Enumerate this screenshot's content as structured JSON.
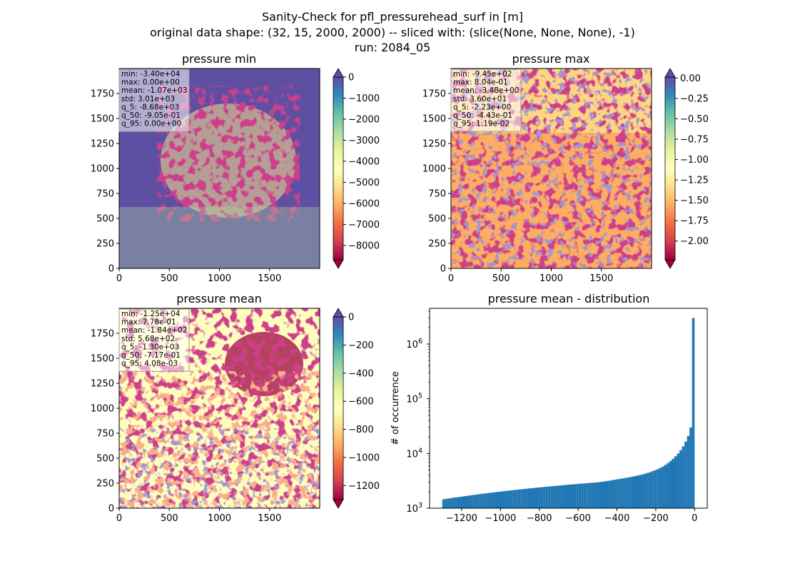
{
  "figure": {
    "title_lines": [
      "Sanity-Check for pfl_pressurehead_surf in [m]",
      "original data shape: (32, 15, 2000, 2000) -- sliced with: (slice(None, None, None), -1)",
      "run: 2084_05"
    ]
  },
  "chart_data": [
    {
      "type": "heatmap",
      "title": "pressure min",
      "xlabel": "",
      "ylabel": "",
      "xlim": [
        0,
        2000
      ],
      "ylim": [
        0,
        2000
      ],
      "xticks": [
        0,
        500,
        1000,
        1500
      ],
      "yticks": [
        0,
        250,
        500,
        750,
        1000,
        1250,
        1500,
        1750
      ],
      "colormap": "Spectral",
      "colorbar": {
        "ticks": [
          0,
          -1000,
          -2000,
          -3000,
          -4000,
          -5000,
          -6000,
          -7000,
          -8000
        ],
        "tick_labels": [
          "0",
          "−1000",
          "−2000",
          "−3000",
          "−4000",
          "−5000",
          "−6000",
          "−7000",
          "−8000"
        ],
        "vmin": -8680,
        "vmax": 0,
        "extend": "both"
      },
      "stats": [
        "min: -3.40e+04",
        "max: 0.00e+00",
        "mean: -1.07e+03",
        "std: 3.01e+03",
        "q_5: -8.68e+03",
        "q_50: -9.05e-01",
        "q_95: 0.00e+00"
      ],
      "dominant_color": "#5e4fa2"
    },
    {
      "type": "heatmap",
      "title": "pressure max",
      "xlabel": "",
      "ylabel": "",
      "xlim": [
        0,
        2000
      ],
      "ylim": [
        0,
        2000
      ],
      "xticks": [
        0,
        500,
        1000,
        1500
      ],
      "yticks": [
        0,
        250,
        500,
        750,
        1000,
        1250,
        1500,
        1750
      ],
      "colormap": "Spectral",
      "colorbar": {
        "ticks": [
          0,
          -0.25,
          -0.5,
          -0.75,
          -1.0,
          -1.25,
          -1.5,
          -1.75,
          -2.0
        ],
        "tick_labels": [
          "0.00",
          "−0.25",
          "−0.50",
          "−0.75",
          "−1.00",
          "−1.25",
          "−1.50",
          "−1.75",
          "−2.00"
        ],
        "vmin": -2.23,
        "vmax": 0.0119,
        "extend": "both"
      },
      "stats": [
        "min: -9.45e+02",
        "max: 8.04e-01",
        "mean: -3.48e+00",
        "std: 3.60e+01",
        "q_5: -2.23e+00",
        "q_50: -4.43e-01",
        "q_95: 1.19e-02"
      ],
      "dominant_color": "#fdae61"
    },
    {
      "type": "heatmap",
      "title": "pressure mean",
      "xlabel": "",
      "ylabel": "",
      "xlim": [
        0,
        2000
      ],
      "ylim": [
        0,
        2000
      ],
      "xticks": [
        0,
        500,
        1000,
        1500
      ],
      "yticks": [
        0,
        250,
        500,
        750,
        1000,
        1250,
        1500,
        1750
      ],
      "colormap": "Spectral",
      "colorbar": {
        "ticks": [
          0,
          -200,
          -400,
          -600,
          -800,
          -1000,
          -1200
        ],
        "tick_labels": [
          "0",
          "−200",
          "−400",
          "−600",
          "−800",
          "−1000",
          "−1200"
        ],
        "vmin": -1300,
        "vmax": 0.00408,
        "extend": "both"
      },
      "stats": [
        "min: -1.25e+04",
        "max: 7.78e-01",
        "mean: -1.84e+02",
        "std: 5.68e+02",
        "q_5: -1.30e+03",
        "q_50: -7.17e-01",
        "q_95: 4.08e-03"
      ],
      "dominant_color": "#fefebf"
    },
    {
      "type": "bar",
      "title": "pressure mean - distribution",
      "xlabel": "",
      "ylabel": "# of occurrence",
      "yscale": "log",
      "xlim": [
        -1365,
        65
      ],
      "ylim": [
        1000,
        4500000
      ],
      "xticks": [
        -1200,
        -1000,
        -800,
        -600,
        -400,
        -200,
        0
      ],
      "xtick_labels": [
        "−1200",
        "−1000",
        "−800",
        "−600",
        "−400",
        "−200",
        "0"
      ],
      "yticks": [
        1000,
        10000,
        100000,
        1000000
      ],
      "ytick_labels": [
        [
          "10",
          "3"
        ],
        [
          "10",
          "4"
        ],
        [
          "10",
          "5"
        ],
        [
          "10",
          "6"
        ]
      ],
      "bin_range": [
        -1300,
        0
      ],
      "bin_count": 100,
      "color": "#1f77b4",
      "values": [
        1450,
        1480,
        1500,
        1530,
        1560,
        1580,
        1600,
        1620,
        1650,
        1670,
        1700,
        1720,
        1750,
        1770,
        1800,
        1820,
        1850,
        1870,
        1900,
        1920,
        1950,
        1970,
        2000,
        2020,
        2050,
        2070,
        2100,
        2120,
        2150,
        2170,
        2200,
        2220,
        2250,
        2270,
        2300,
        2320,
        2350,
        2370,
        2400,
        2420,
        2450,
        2470,
        2500,
        2520,
        2550,
        2570,
        2600,
        2620,
        2650,
        2670,
        2700,
        2720,
        2750,
        2770,
        2800,
        2820,
        2850,
        2870,
        2900,
        2920,
        2950,
        2970,
        3000,
        3050,
        3100,
        3150,
        3200,
        3260,
        3320,
        3380,
        3440,
        3500,
        3560,
        3630,
        3700,
        3780,
        3860,
        3950,
        4050,
        4150,
        4280,
        4420,
        4580,
        4760,
        4960,
        5200,
        5480,
        5800,
        6200,
        6700,
        7300,
        8000,
        8900,
        10000,
        11500,
        13500,
        16500,
        21000,
        30000,
        3000000
      ]
    }
  ]
}
